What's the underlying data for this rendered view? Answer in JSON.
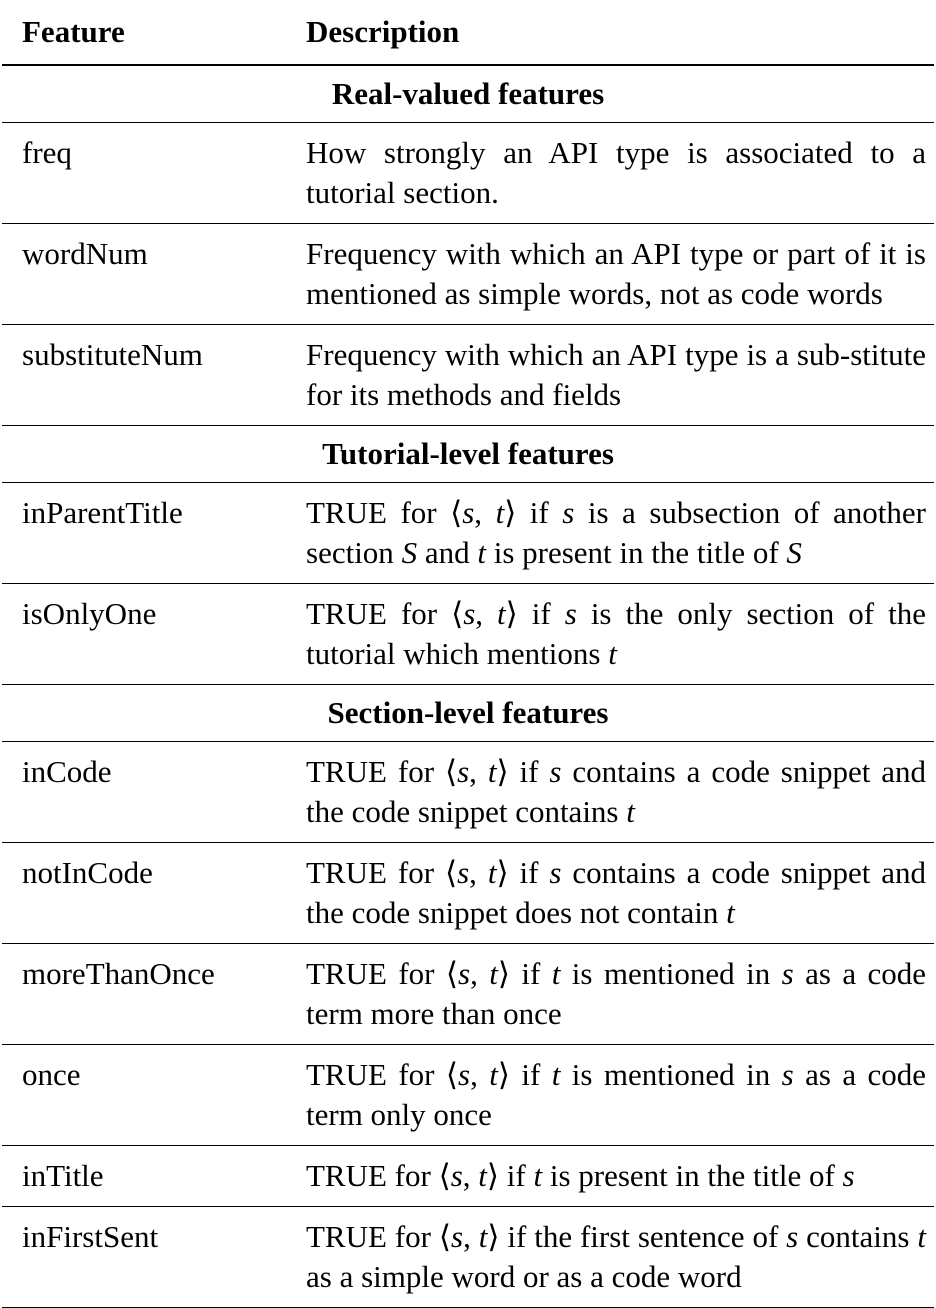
{
  "header": {
    "feature": "Feature",
    "description": "Description"
  },
  "groups": [
    {
      "title": "Real-valued features",
      "rows": [
        {
          "feature": "freq",
          "description": "How strongly an API type is associated to a tutorial section."
        },
        {
          "feature": "wordNum",
          "description": "Frequency with which an API type or part of it is mentioned as simple words, not as code words"
        },
        {
          "feature": "substituteNum",
          "description": "Frequency with which an API type is a sub-stitute for its methods and fields"
        }
      ]
    },
    {
      "title": "Tutorial-level features",
      "rows": [
        {
          "feature": "inParentTitle",
          "description": "TRUE for ⟨s, t⟩ if s is a subsection of another section S and t is present in the title of S"
        },
        {
          "feature": "isOnlyOne",
          "description": "TRUE for ⟨s, t⟩ if s is the only section of the tutorial which mentions t"
        }
      ]
    },
    {
      "title": "Section-level features",
      "rows": [
        {
          "feature": "inCode",
          "description": "TRUE for ⟨s, t⟩ if s contains a code snippet and the code snippet contains t"
        },
        {
          "feature": "notInCode",
          "description": "TRUE for ⟨s, t⟩ if s contains a code snippet and the code snippet does not contain t"
        },
        {
          "feature": "moreThanOnce",
          "description": "TRUE for ⟨s, t⟩ if t is mentioned in s as a code term more than once"
        },
        {
          "feature": "once",
          "description": "TRUE for ⟨s, t⟩ if t is mentioned in s as a code term only once"
        },
        {
          "feature": "inTitle",
          "description": "TRUE for ⟨s, t⟩ if t is present in the title of s"
        },
        {
          "feature": "inFirstSent",
          "description": "TRUE for ⟨s, t⟩ if the first sentence of s contains t as a simple word or as a code word"
        }
      ]
    }
  ]
}
